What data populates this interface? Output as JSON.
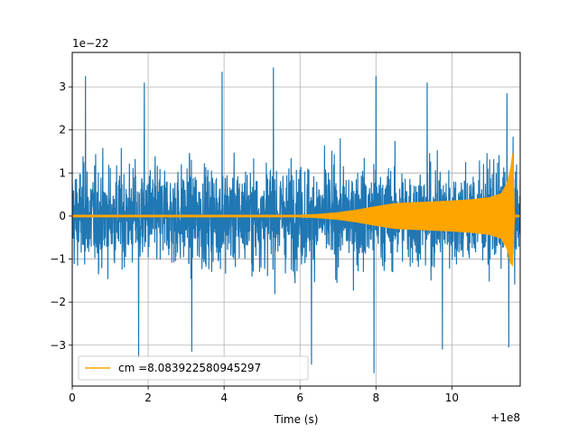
{
  "chart_data": {
    "type": "line",
    "title": "",
    "xlabel": "Time (s)",
    "ylabel": "",
    "y_scale_label": "1e−22",
    "x_offset_label": "+1e8",
    "xlim": [
      0,
      11.8
    ],
    "ylim": [
      -3.95,
      3.8
    ],
    "xticks": [
      0,
      2,
      4,
      6,
      8,
      10
    ],
    "xtick_labels": [
      "0",
      "2",
      "4",
      "6",
      "8",
      "10"
    ],
    "yticks": [
      -3,
      -2,
      -1,
      0,
      1,
      2,
      3
    ],
    "ytick_labels": [
      "−3",
      "−2",
      "−1",
      "0",
      "1",
      "2",
      "3"
    ],
    "grid": true,
    "legend_position": "lower-left",
    "series": [
      {
        "role": "noise",
        "color": "#1f77b4",
        "envelope": {
          "typical_amplitude": 1.8,
          "positive_spikes": [
            [
              0.35,
              3.25
            ],
            [
              1.9,
              3.1
            ],
            [
              3.95,
              3.35
            ],
            [
              5.3,
              3.45
            ],
            [
              8.0,
              3.25
            ],
            [
              9.35,
              3.1
            ],
            [
              11.45,
              2.85
            ]
          ],
          "negative_spikes": [
            [
              1.75,
              -3.3
            ],
            [
              3.15,
              -3.15
            ],
            [
              6.3,
              -3.45
            ],
            [
              7.95,
              -3.65
            ],
            [
              9.75,
              -3.1
            ],
            [
              11.5,
              -3.05
            ]
          ]
        }
      },
      {
        "name": "cm =8.083922580945297",
        "role": "signal",
        "color": "#ffa500",
        "envelope_points": [
          [
            0,
            0.02
          ],
          [
            6.0,
            0.02
          ],
          [
            6.5,
            0.04
          ],
          [
            7.0,
            0.08
          ],
          [
            7.5,
            0.14
          ],
          [
            8.0,
            0.22
          ],
          [
            8.5,
            0.29
          ],
          [
            9.0,
            0.31
          ],
          [
            9.5,
            0.33
          ],
          [
            10.0,
            0.35
          ],
          [
            10.5,
            0.38
          ],
          [
            11.0,
            0.43
          ],
          [
            11.3,
            0.52
          ],
          [
            11.45,
            0.75
          ],
          [
            11.55,
            1.1
          ],
          [
            11.6,
            1.45
          ],
          [
            11.65,
            0.02
          ],
          [
            11.8,
            0.02
          ]
        ],
        "min_spike": [
          11.6,
          -1.15
        ]
      }
    ]
  }
}
